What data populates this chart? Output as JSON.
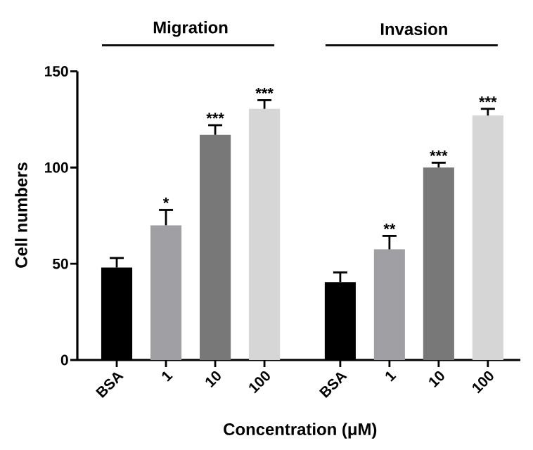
{
  "chart_data": [
    {
      "type": "bar",
      "title": "Migration",
      "ylabel": "Cell numbers",
      "xlabel": "Concentration (μM)",
      "categories": [
        "BSA",
        "1",
        "10",
        "100"
      ],
      "values": [
        48,
        70,
        117,
        130.5
      ],
      "errors": [
        5,
        8,
        5,
        4.5
      ],
      "colors": [
        "#000000",
        "#a0a0a4",
        "#787878",
        "#d6d6d6"
      ],
      "ylim": [
        0,
        150
      ],
      "yticks": [
        0,
        50,
        100,
        150
      ],
      "grid": false,
      "annotations": [
        {
          "text": "*",
          "x": "1",
          "y": 78
        },
        {
          "text": "***",
          "x": "10",
          "y": 122
        },
        {
          "text": "***",
          "x": "100",
          "y": 135
        }
      ]
    },
    {
      "type": "bar",
      "title": "Invasion",
      "categories": [
        "BSA",
        "1",
        "10",
        "100"
      ],
      "values": [
        40.5,
        57.5,
        100,
        127
      ],
      "errors": [
        5,
        7,
        2.5,
        3.5
      ],
      "colors": [
        "#000000",
        "#a0a0a4",
        "#787878",
        "#d6d6d6"
      ],
      "ylim": [
        0,
        150
      ],
      "tick_labels": "x",
      "grid": false,
      "annotations": [
        {
          "text": "**",
          "x": "1",
          "y": 64.5
        },
        {
          "text": "***",
          "x": "10",
          "y": 102.5
        },
        {
          "text": "***",
          "x": "100",
          "y": 130.5
        }
      ]
    }
  ]
}
